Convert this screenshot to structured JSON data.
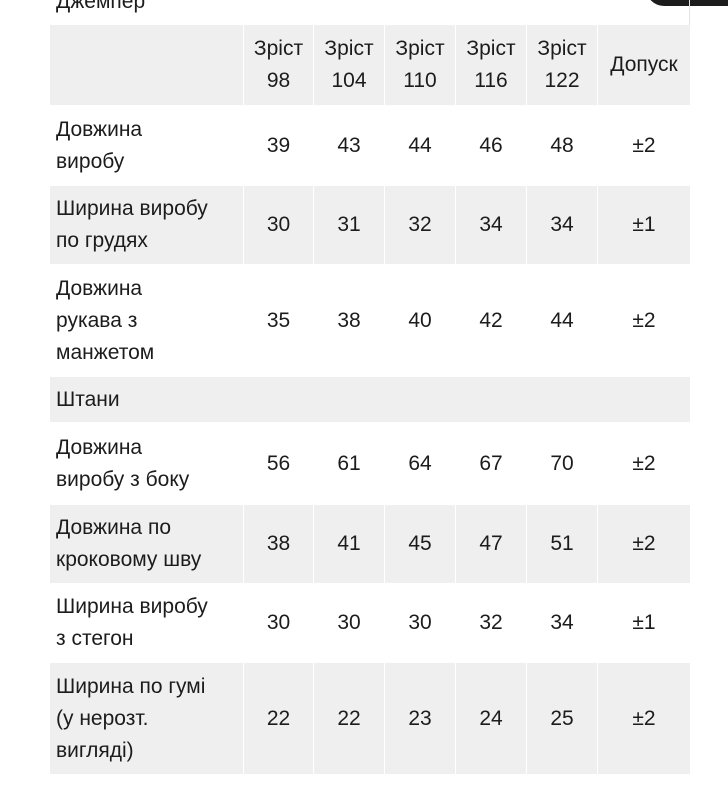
{
  "section_title": "Джемпер",
  "header": {
    "sizes": [
      "Зріст\n98",
      "Зріст\n104",
      "Зріст\n110",
      "Зріст\n116",
      "Зріст\n122"
    ],
    "tolerance": "Допуск"
  },
  "rows": [
    {
      "label": "Довжина\nвиробу",
      "values": [
        "39",
        "43",
        "44",
        "46",
        "48"
      ],
      "tolerance": "±2"
    },
    {
      "label": "Ширина виробу\nпо грудях",
      "values": [
        "30",
        "31",
        "32",
        "34",
        "34"
      ],
      "tolerance": "±1"
    },
    {
      "label": "Довжина\nрукава з\nманжетом",
      "values": [
        "35",
        "38",
        "40",
        "42",
        "44"
      ],
      "tolerance": "±2"
    },
    {
      "section": "Штани"
    },
    {
      "label": "Довжина\nвиробу з боку",
      "values": [
        "56",
        "61",
        "64",
        "67",
        "70"
      ],
      "tolerance": "±2"
    },
    {
      "label": "Довжина по\nкроковому шву",
      "values": [
        "38",
        "41",
        "45",
        "47",
        "51"
      ],
      "tolerance": "±2"
    },
    {
      "label": "Ширина виробу\nз стегон",
      "values": [
        "30",
        "30",
        "30",
        "32",
        "34"
      ],
      "tolerance": "±1"
    },
    {
      "label": "Ширина по гумі\n(у нерозт.\nвигляді)",
      "values": [
        "22",
        "22",
        "23",
        "24",
        "25"
      ],
      "tolerance": "±2"
    }
  ],
  "colors": {
    "shaded_row": "#efefef",
    "plain_row": "#ffffff",
    "text": "#1c1c1c"
  }
}
